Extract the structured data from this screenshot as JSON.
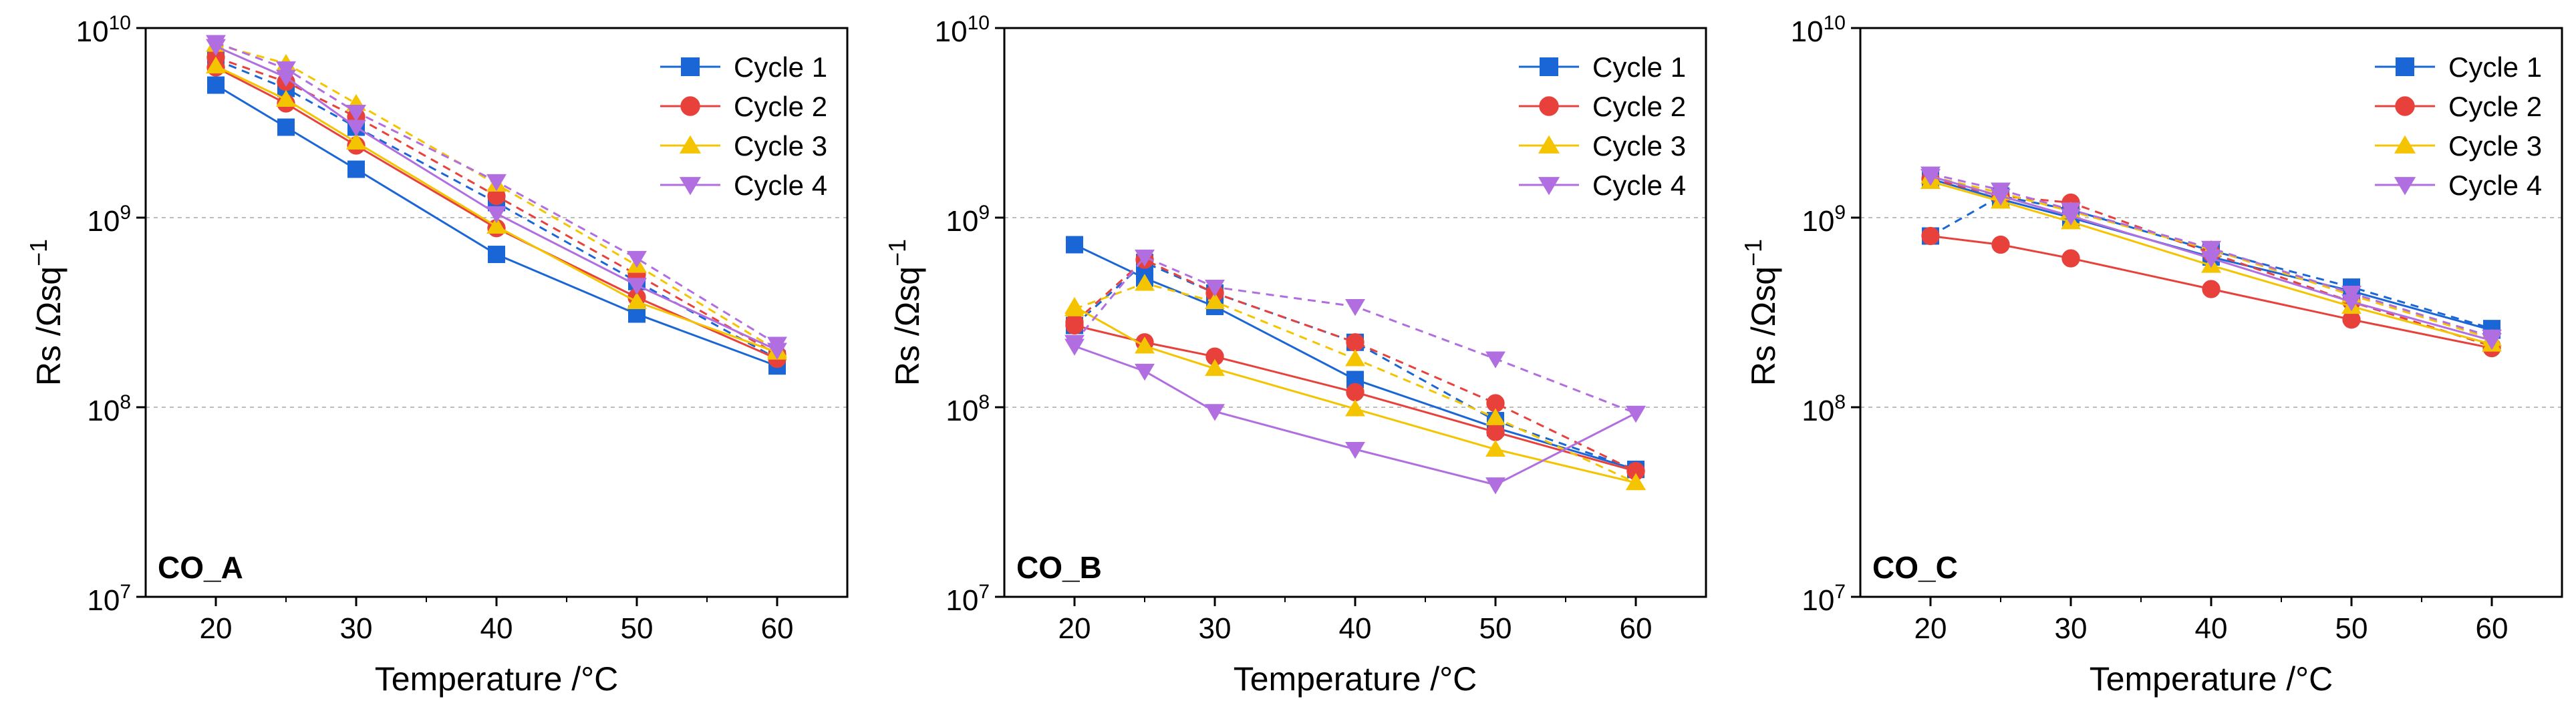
{
  "colors": {
    "Cycle 1": "#1a66d6",
    "Cycle 2": "#e8413c",
    "Cycle 3": "#f5c400",
    "Cycle 4": "#b06ee0"
  },
  "markers": {
    "Cycle 1": "square",
    "Cycle 2": "circle",
    "Cycle 3": "triangle-up",
    "Cycle 4": "triangle-down"
  },
  "chart_data": [
    {
      "type": "line",
      "panel_label": "CO_A",
      "xlabel": "Temperature /°C",
      "ylabel": "Rs /Ωsq",
      "ylabel_sup": "−1",
      "yscale": "log",
      "xlim": [
        15,
        65
      ],
      "ylim": [
        10000000,
        10000000000
      ],
      "xticks": [
        20,
        30,
        40,
        50,
        60
      ],
      "xtick_labels": [
        "20",
        "30",
        "40",
        "50",
        "60"
      ],
      "ytick_labels": [
        {
          "value": 10000000,
          "base": "10",
          "exp": "7"
        },
        {
          "value": 100000000,
          "base": "10",
          "exp": "8"
        },
        {
          "value": 1000000000,
          "base": "10",
          "exp": "9"
        },
        {
          "value": 10000000000,
          "base": "10",
          "exp": "10"
        }
      ],
      "grid": "y-dashed",
      "legend_position": "top-right",
      "x": [
        20,
        25,
        30,
        40,
        50,
        60
      ],
      "series": [
        {
          "name": "Cycle 1",
          "style": "solid",
          "values": [
            5000000000,
            3000000000,
            1800000000,
            640000000,
            310000000,
            165000000
          ]
        },
        {
          "name": "Cycle 1",
          "style": "dashed",
          "values": [
            6800000000,
            4800000000,
            3000000000,
            1200000000,
            460000000,
            180000000
          ]
        },
        {
          "name": "Cycle 2",
          "style": "solid",
          "values": [
            6200000000,
            4000000000,
            2400000000,
            880000000,
            380000000,
            180000000
          ]
        },
        {
          "name": "Cycle 2",
          "style": "dashed",
          "values": [
            7000000000,
            5200000000,
            3400000000,
            1300000000,
            500000000,
            190000000
          ]
        },
        {
          "name": "Cycle 3",
          "style": "solid",
          "values": [
            6300000000,
            4200000000,
            2500000000,
            900000000,
            360000000,
            195000000
          ]
        },
        {
          "name": "Cycle 3",
          "style": "dashed",
          "values": [
            8200000000,
            6500000000,
            4000000000,
            1500000000,
            560000000,
            200000000
          ]
        },
        {
          "name": "Cycle 4",
          "style": "solid",
          "values": [
            8000000000,
            5500000000,
            3000000000,
            1050000000,
            440000000,
            200000000
          ]
        },
        {
          "name": "Cycle 4",
          "style": "dashed",
          "values": [
            8400000000,
            6100000000,
            3600000000,
            1550000000,
            610000000,
            215000000
          ]
        }
      ]
    },
    {
      "type": "line",
      "panel_label": "CO_B",
      "xlabel": "Temperature /°C",
      "ylabel": "Rs /Ωsq",
      "ylabel_sup": "−1",
      "yscale": "log",
      "xlim": [
        15,
        65
      ],
      "ylim": [
        10000000,
        10000000000
      ],
      "xticks": [
        20,
        30,
        40,
        50,
        60
      ],
      "xtick_labels": [
        "20",
        "30",
        "40",
        "50",
        "60"
      ],
      "ytick_labels": [
        {
          "value": 10000000,
          "base": "10",
          "exp": "7"
        },
        {
          "value": 100000000,
          "base": "10",
          "exp": "8"
        },
        {
          "value": 1000000000,
          "base": "10",
          "exp": "9"
        },
        {
          "value": 10000000000,
          "base": "10",
          "exp": "10"
        }
      ],
      "grid": "y-dashed",
      "legend_position": "top-right",
      "x": [
        20,
        25,
        30,
        40,
        50,
        60
      ],
      "series": [
        {
          "name": "Cycle 1",
          "style": "solid",
          "values": [
            720000000,
            480000000,
            340000000,
            140000000,
            78000000,
            47000000
          ]
        },
        {
          "name": "Cycle 1",
          "style": "dashed",
          "values": [
            270000000,
            580000000,
            400000000,
            220000000,
            85000000,
            47000000
          ]
        },
        {
          "name": "Cycle 2",
          "style": "solid",
          "values": [
            270000000,
            220000000,
            185000000,
            120000000,
            74000000,
            46000000
          ]
        },
        {
          "name": "Cycle 2",
          "style": "dashed",
          "values": [
            280000000,
            600000000,
            400000000,
            220000000,
            105000000,
            46000000
          ]
        },
        {
          "name": "Cycle 3",
          "style": "solid",
          "values": [
            340000000,
            210000000,
            160000000,
            98000000,
            60000000,
            40000000
          ]
        },
        {
          "name": "Cycle 3",
          "style": "dashed",
          "values": [
            330000000,
            450000000,
            360000000,
            180000000,
            88000000,
            40000000
          ]
        },
        {
          "name": "Cycle 4",
          "style": "solid",
          "values": [
            210000000,
            155000000,
            95000000,
            60000000,
            39000000,
            93000000
          ]
        },
        {
          "name": "Cycle 4",
          "style": "dashed",
          "values": [
            220000000,
            620000000,
            430000000,
            340000000,
            180000000,
            93000000
          ]
        }
      ]
    },
    {
      "type": "line",
      "panel_label": "CO_C",
      "xlabel": "Temperature /°C",
      "ylabel": "Rs /Ωsq",
      "ylabel_sup": "−1",
      "yscale": "log",
      "xlim": [
        15,
        65
      ],
      "ylim": [
        10000000,
        10000000000
      ],
      "xticks": [
        20,
        30,
        40,
        50,
        60
      ],
      "xtick_labels": [
        "20",
        "30",
        "40",
        "50",
        "60"
      ],
      "ytick_labels": [
        {
          "value": 10000000,
          "base": "10",
          "exp": "7"
        },
        {
          "value": 100000000,
          "base": "10",
          "exp": "8"
        },
        {
          "value": 1000000000,
          "base": "10",
          "exp": "9"
        },
        {
          "value": 10000000000,
          "base": "10",
          "exp": "10"
        }
      ],
      "grid": "y-dashed",
      "legend_position": "top-right",
      "x": [
        20,
        25,
        30,
        40,
        50,
        60
      ],
      "series": [
        {
          "name": "Cycle 1",
          "style": "solid",
          "values": [
            1600000000,
            1250000000,
            1000000000,
            620000000,
            410000000,
            255000000
          ]
        },
        {
          "name": "Cycle 1",
          "style": "dashed",
          "values": [
            800000000,
            1300000000,
            1100000000,
            670000000,
            430000000,
            260000000
          ]
        },
        {
          "name": "Cycle 2",
          "style": "solid",
          "values": [
            800000000,
            720000000,
            610000000,
            420000000,
            290000000,
            205000000
          ]
        },
        {
          "name": "Cycle 2",
          "style": "dashed",
          "values": [
            1600000000,
            1300000000,
            1200000000,
            650000000,
            360000000,
            210000000
          ]
        },
        {
          "name": "Cycle 3",
          "style": "solid",
          "values": [
            1550000000,
            1220000000,
            950000000,
            560000000,
            340000000,
            215000000
          ]
        },
        {
          "name": "Cycle 3",
          "style": "dashed",
          "values": [
            1650000000,
            1350000000,
            1080000000,
            680000000,
            390000000,
            230000000
          ]
        },
        {
          "name": "Cycle 4",
          "style": "solid",
          "values": [
            1650000000,
            1300000000,
            1020000000,
            610000000,
            360000000,
            225000000
          ]
        },
        {
          "name": "Cycle 4",
          "style": "dashed",
          "values": [
            1700000000,
            1400000000,
            1100000000,
            690000000,
            400000000,
            235000000
          ]
        }
      ]
    }
  ]
}
